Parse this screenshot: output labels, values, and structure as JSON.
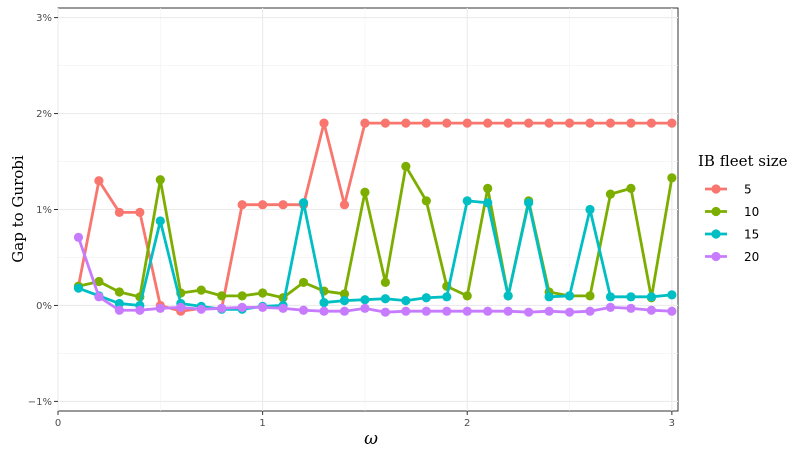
{
  "chart_data": {
    "type": "line",
    "xlabel": "ω",
    "ylabel": "Gap to Gurobi",
    "xlim": [
      0,
      3.03
    ],
    "ylim": [
      -1.1,
      3.1
    ],
    "x_ticks": [
      0,
      1,
      2,
      3
    ],
    "x_tick_labels": [
      "0",
      "1",
      "2",
      "3"
    ],
    "y_ticks": [
      -1,
      0,
      1,
      2,
      3
    ],
    "y_tick_labels": [
      "−1%",
      "0%",
      "1%",
      "2%",
      "3%"
    ],
    "grid": true,
    "legend_title": "IB fleet size",
    "legend_position": "right",
    "x": [
      0.1,
      0.2,
      0.3,
      0.4,
      0.5,
      0.6,
      0.7,
      0.8,
      0.9,
      1.0,
      1.1,
      1.2,
      1.3,
      1.4,
      1.5,
      1.6,
      1.7,
      1.8,
      1.9,
      2.0,
      2.1,
      2.2,
      2.3,
      2.4,
      2.5,
      2.6,
      2.7,
      2.8,
      2.9,
      3.0
    ],
    "series": [
      {
        "name": "5",
        "color": "#F8766D",
        "values": [
          0.2,
          1.3,
          0.97,
          0.97,
          0.0,
          -0.06,
          -0.03,
          -0.03,
          1.05,
          1.05,
          1.05,
          1.05,
          1.9,
          1.05,
          1.9,
          1.9,
          1.9,
          1.9,
          1.9,
          1.9,
          1.9,
          1.9,
          1.9,
          1.9,
          1.9,
          1.9,
          1.9,
          1.9,
          1.9,
          1.9
        ]
      },
      {
        "name": "10",
        "color": "#7CAE00",
        "values": [
          0.2,
          0.25,
          0.14,
          0.09,
          1.31,
          0.13,
          0.16,
          0.1,
          0.1,
          0.13,
          0.08,
          0.24,
          0.15,
          0.12,
          1.18,
          0.24,
          1.45,
          1.09,
          0.2,
          0.1,
          1.22,
          0.1,
          1.09,
          0.14,
          0.1,
          0.1,
          1.16,
          1.22,
          0.08,
          1.33
        ]
      },
      {
        "name": "15",
        "color": "#00BFC4",
        "values": [
          0.18,
          0.1,
          0.02,
          0.0,
          0.88,
          0.02,
          -0.01,
          -0.04,
          -0.04,
          -0.01,
          0.0,
          1.07,
          0.03,
          0.05,
          0.06,
          0.07,
          0.05,
          0.08,
          0.09,
          1.09,
          1.07,
          0.1,
          1.07,
          0.09,
          0.1,
          1.0,
          0.09,
          0.09,
          0.09,
          0.11
        ]
      },
      {
        "name": "20",
        "color": "#C77CFF",
        "values": [
          0.71,
          0.09,
          -0.05,
          -0.05,
          -0.03,
          -0.02,
          -0.04,
          -0.03,
          -0.02,
          -0.02,
          -0.03,
          -0.05,
          -0.06,
          -0.06,
          -0.03,
          -0.07,
          -0.06,
          -0.06,
          -0.06,
          -0.06,
          -0.06,
          -0.06,
          -0.07,
          -0.06,
          -0.07,
          -0.06,
          -0.02,
          -0.03,
          -0.05,
          -0.06
        ]
      }
    ]
  }
}
